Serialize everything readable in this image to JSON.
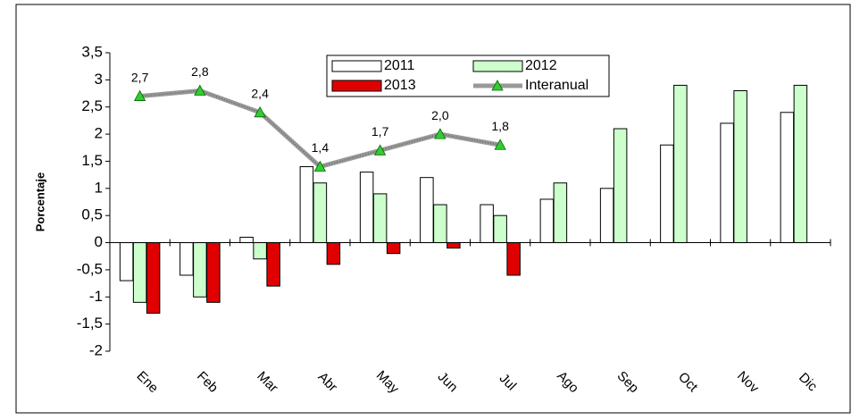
{
  "chart_data": {
    "type": "bar_line",
    "y_label": "Porcentaje",
    "categories": [
      "Ene",
      "Feb",
      "Mar",
      "Abr",
      "May",
      "Jun",
      "Jul",
      "Ago",
      "Sep",
      "Oct",
      "Nov",
      "Dic"
    ],
    "series": [
      {
        "name": "2011",
        "type": "bar",
        "color": "#ffffff",
        "values": [
          -0.7,
          -0.6,
          0.1,
          1.4,
          1.3,
          1.2,
          0.7,
          0.8,
          1.0,
          1.8,
          2.2,
          2.4
        ]
      },
      {
        "name": "2012",
        "type": "bar",
        "color": "#ccffcc",
        "values": [
          -1.1,
          -1.0,
          -0.3,
          1.1,
          0.9,
          0.7,
          0.5,
          1.1,
          2.1,
          2.9,
          2.8,
          2.9
        ]
      },
      {
        "name": "2013",
        "type": "bar",
        "color": "#e00000",
        "values": [
          -1.3,
          -1.1,
          -0.8,
          -0.4,
          -0.2,
          -0.1,
          -0.6,
          null,
          null,
          null,
          null,
          null
        ]
      },
      {
        "name": "Interanual",
        "type": "line",
        "color": "#999999",
        "marker_color": "#33cc33",
        "values": [
          2.7,
          2.8,
          2.4,
          1.4,
          1.7,
          2.0,
          1.8,
          null,
          null,
          null,
          null,
          null
        ],
        "value_labels": [
          "2,7",
          "2,8",
          "2,4",
          "1,4",
          "1,7",
          "2,0",
          "1,8",
          null,
          null,
          null,
          null,
          null
        ]
      }
    ],
    "ylim": [
      -2,
      3.5
    ],
    "yticks": [
      -2,
      {
        "value": -1.5,
        "label": "-1,5"
      },
      -1,
      {
        "value": -0.5,
        "label": "-0,5"
      },
      0,
      {
        "value": 0.5,
        "label": "0,5"
      },
      1,
      {
        "value": 1.5,
        "label": "1,5"
      },
      2,
      {
        "value": 2.5,
        "label": "2,5"
      },
      3,
      {
        "value": 3.5,
        "label": "3,5"
      }
    ],
    "grid": false
  }
}
